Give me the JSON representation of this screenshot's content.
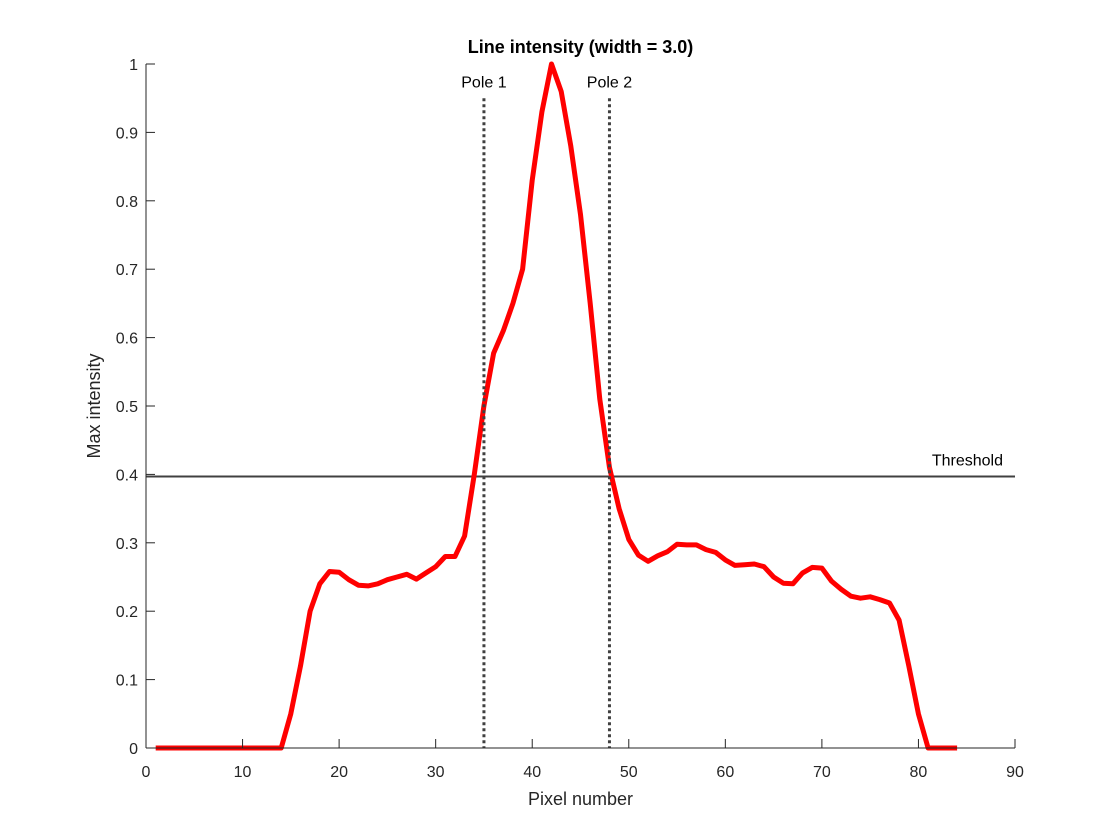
{
  "chart_data": {
    "type": "line",
    "title": "Line intensity (width = 3.0)",
    "xlabel": "Pixel number",
    "ylabel": "Max intensity",
    "xlim": [
      0,
      90
    ],
    "ylim": [
      0,
      1
    ],
    "xticks": [
      0,
      10,
      20,
      30,
      40,
      50,
      60,
      70,
      80,
      90
    ],
    "yticks": [
      0,
      0.1,
      0.2,
      0.3,
      0.4,
      0.5,
      0.6,
      0.7,
      0.8,
      0.9,
      1
    ],
    "ytick_labels": [
      "0",
      "0.1",
      "0.2",
      "0.3",
      "0.4",
      "0.5",
      "0.6",
      "0.7",
      "0.8",
      "0.9",
      "1"
    ],
    "grid": false,
    "series": [
      {
        "color": "#ff0000",
        "x": [
          1,
          2,
          3,
          4,
          5,
          6,
          7,
          8,
          9,
          10,
          11,
          12,
          13,
          14,
          15,
          16,
          17,
          18,
          19,
          20,
          21,
          22,
          23,
          24,
          25,
          26,
          27,
          28,
          29,
          30,
          31,
          32,
          33,
          34,
          35,
          36,
          37,
          38,
          39,
          40,
          41,
          42,
          43,
          44,
          45,
          46,
          47,
          48,
          49,
          50,
          51,
          52,
          53,
          54,
          55,
          56,
          57,
          58,
          59,
          60,
          61,
          62,
          63,
          64,
          65,
          66,
          67,
          68,
          69,
          70,
          71,
          72,
          73,
          74,
          75,
          76,
          77,
          78,
          79,
          80,
          81,
          82,
          83,
          84
        ],
        "y": [
          0,
          0,
          0,
          0,
          0,
          0,
          0,
          0,
          0,
          0,
          0,
          0,
          0,
          0,
          0.05,
          0.12,
          0.2,
          0.24,
          0.258,
          0.257,
          0.246,
          0.238,
          0.237,
          0.24,
          0.246,
          0.25,
          0.254,
          0.247,
          0.256,
          0.265,
          0.28,
          0.28,
          0.31,
          0.4,
          0.5,
          0.577,
          0.61,
          0.65,
          0.7,
          0.83,
          0.93,
          1.0,
          0.96,
          0.88,
          0.78,
          0.65,
          0.51,
          0.41,
          0.35,
          0.305,
          0.282,
          0.273,
          0.281,
          0.287,
          0.298,
          0.297,
          0.297,
          0.29,
          0.286,
          0.275,
          0.267,
          0.268,
          0.269,
          0.265,
          0.25,
          0.241,
          0.24,
          0.256,
          0.264,
          0.263,
          0.244,
          0.232,
          0.222,
          0.219,
          0.221,
          0.217,
          0.212,
          0.187,
          0.12,
          0.05,
          0,
          0,
          0,
          0
        ]
      }
    ],
    "vlines": [
      {
        "x": 35,
        "label": "Pole 1",
        "style": "dotted",
        "color": "#404040"
      },
      {
        "x": 48,
        "label": "Pole 2",
        "style": "dotted",
        "color": "#404040"
      }
    ],
    "hlines": [
      {
        "y": 0.397,
        "label": "Threshold",
        "color": "#404040"
      }
    ]
  }
}
